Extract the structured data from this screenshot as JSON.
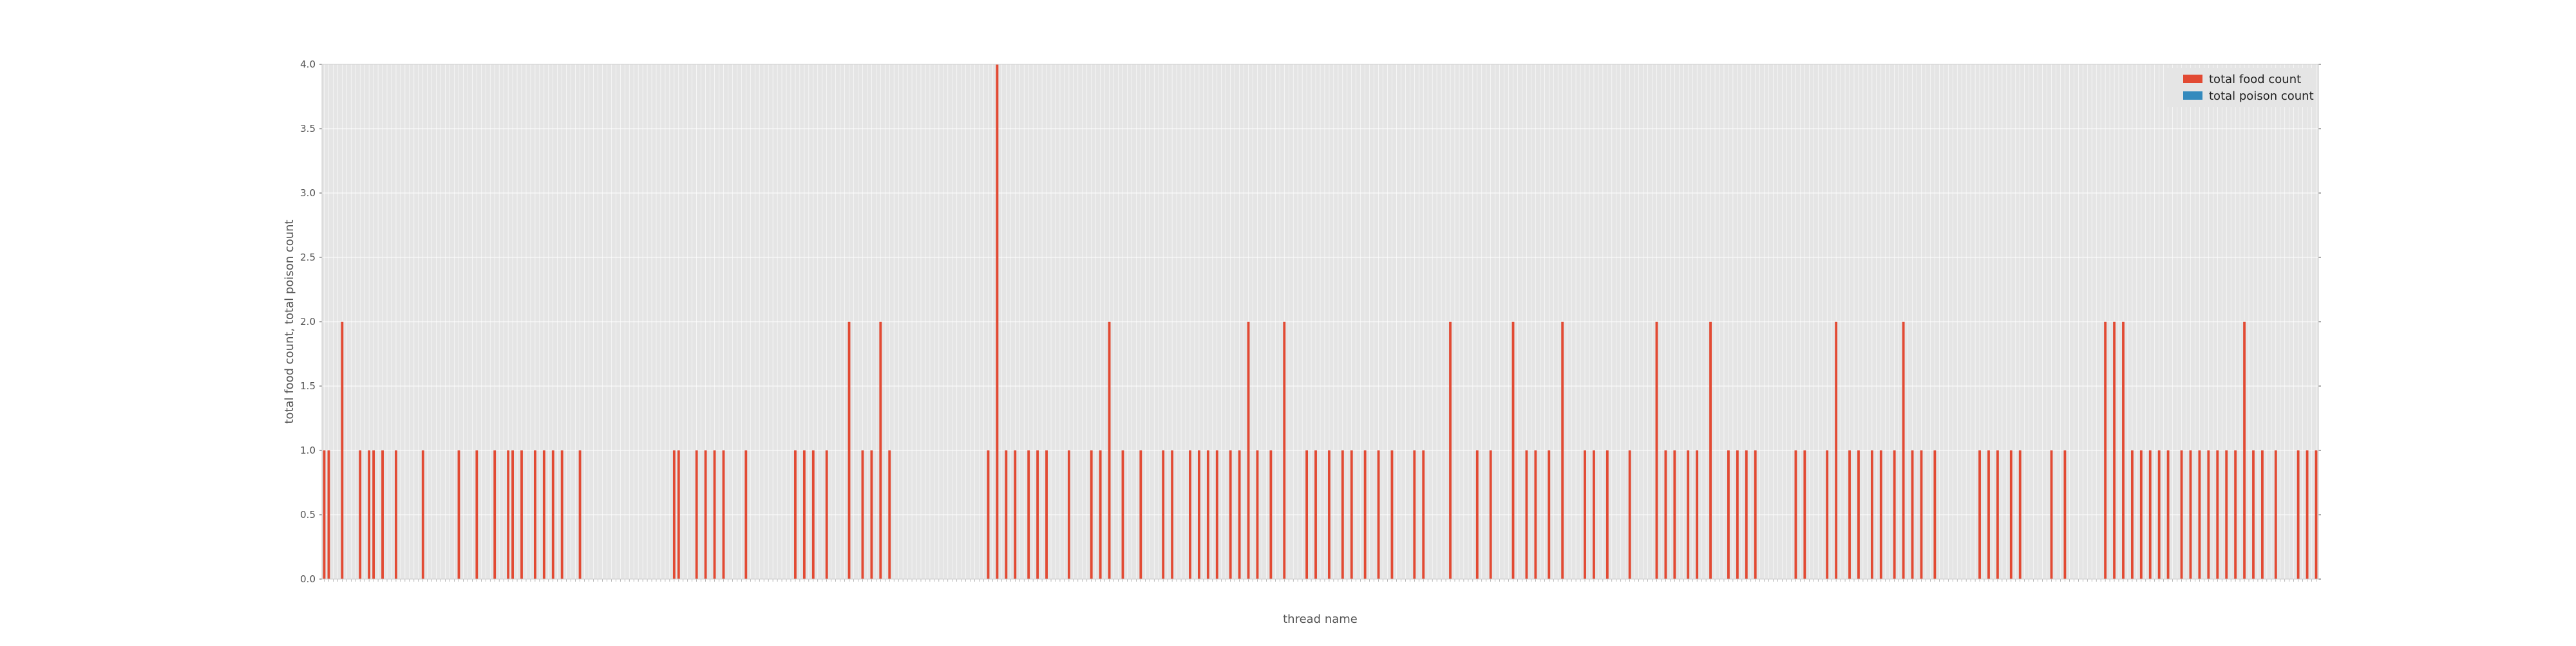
{
  "chart_data": {
    "type": "bar",
    "stacked": true,
    "xlabel": "thread name",
    "ylabel": "total food count, total poison count",
    "ylim": [
      0,
      4
    ],
    "yticks": [
      "0.0",
      "0.5",
      "1.0",
      "1.5",
      "2.0",
      "2.5",
      "3.0",
      "3.5",
      "4.0"
    ],
    "grid": true,
    "legend_position": "top-right",
    "series": [
      {
        "name": "total food count",
        "color": "#e24a33",
        "values": [
          1,
          1,
          0,
          0,
          2,
          0,
          0,
          0,
          1,
          0,
          1,
          1,
          0,
          1,
          0,
          0,
          1,
          0,
          0,
          0,
          0,
          0,
          1,
          0,
          0,
          0,
          0,
          0,
          0,
          0,
          1,
          0,
          0,
          0,
          1,
          0,
          0,
          0,
          1,
          0,
          0,
          1,
          1,
          0,
          1,
          0,
          0,
          1,
          0,
          1,
          0,
          1,
          0,
          1,
          0,
          0,
          0,
          1,
          0,
          0,
          0,
          0,
          0,
          0,
          0,
          0,
          0,
          0,
          0,
          0,
          0,
          0,
          0,
          0,
          0,
          0,
          0,
          0,
          1,
          1,
          0,
          0,
          0,
          1,
          0,
          1,
          0,
          1,
          0,
          1,
          0,
          0,
          0,
          0,
          1,
          0,
          0,
          0,
          0,
          0,
          0,
          0,
          0,
          0,
          0,
          1,
          0,
          1,
          0,
          1,
          0,
          0,
          1,
          0,
          0,
          0,
          0,
          2,
          0,
          0,
          1,
          0,
          1,
          0,
          2,
          0,
          1,
          0,
          0,
          0,
          0,
          0,
          0,
          0,
          0,
          0,
          0,
          0,
          0,
          0,
          0,
          0,
          0,
          0,
          0,
          0,
          0,
          0,
          1,
          0,
          4,
          0,
          1,
          0,
          1,
          0,
          0,
          1,
          0,
          1,
          0,
          1,
          0,
          0,
          0,
          0,
          1,
          0,
          0,
          0,
          0,
          1,
          0,
          1,
          0,
          2,
          0,
          0,
          1,
          0,
          0,
          0,
          1,
          0,
          0,
          0,
          0,
          1,
          0,
          1,
          0,
          0,
          0,
          1,
          0,
          1,
          0,
          1,
          0,
          1,
          0,
          0,
          1,
          0,
          1,
          0,
          2,
          0,
          1,
          0,
          0,
          1,
          0,
          0,
          2,
          0,
          0,
          0,
          0,
          1,
          0,
          1,
          0,
          0,
          1,
          0,
          0,
          1,
          0,
          1,
          0,
          0,
          1,
          0,
          0,
          1,
          0,
          0,
          1,
          0,
          0,
          0,
          0,
          1,
          0,
          1,
          0,
          0,
          0,
          0,
          0,
          2,
          0,
          0,
          0,
          0,
          0,
          1,
          0,
          0,
          1,
          0,
          0,
          0,
          0,
          2,
          0,
          0,
          1,
          0,
          1,
          0,
          0,
          1,
          0,
          0,
          2,
          0,
          0,
          0,
          0,
          1,
          0,
          1,
          0,
          0,
          1,
          0,
          0,
          0,
          0,
          1,
          0,
          0,
          0,
          0,
          0,
          2,
          0,
          1,
          0,
          1,
          0,
          0,
          1,
          0,
          1,
          0,
          0,
          2,
          0,
          0,
          0,
          1,
          0,
          1,
          0,
          1,
          0,
          1,
          0,
          0,
          0,
          0,
          0,
          0,
          0,
          0,
          1,
          0,
          1,
          0,
          0,
          0,
          0,
          1,
          0,
          2,
          0,
          0,
          1,
          0,
          1,
          0,
          0,
          1,
          0,
          1,
          0,
          0,
          1,
          0,
          2,
          0,
          1,
          0,
          1,
          0,
          0,
          1,
          0,
          0,
          0,
          0,
          0,
          0,
          0,
          0,
          0,
          1,
          0,
          1,
          0,
          1,
          0,
          0,
          1,
          0,
          1,
          0,
          0,
          0,
          0,
          0,
          0,
          1,
          0,
          0,
          1,
          0,
          0,
          0,
          0,
          0,
          0,
          0,
          0,
          2,
          0,
          2,
          0,
          2,
          0,
          1,
          0,
          1,
          0,
          1,
          0,
          1,
          0,
          1,
          0,
          0,
          1,
          0,
          1,
          0,
          1,
          0,
          1,
          0,
          1,
          0,
          1,
          0,
          1,
          0,
          2,
          0,
          1,
          0,
          1,
          0,
          0,
          1,
          0,
          0,
          0,
          0,
          1,
          0,
          1,
          0,
          1
        ]
      },
      {
        "name": "total poison count",
        "color": "#348abd",
        "values": []
      }
    ]
  }
}
